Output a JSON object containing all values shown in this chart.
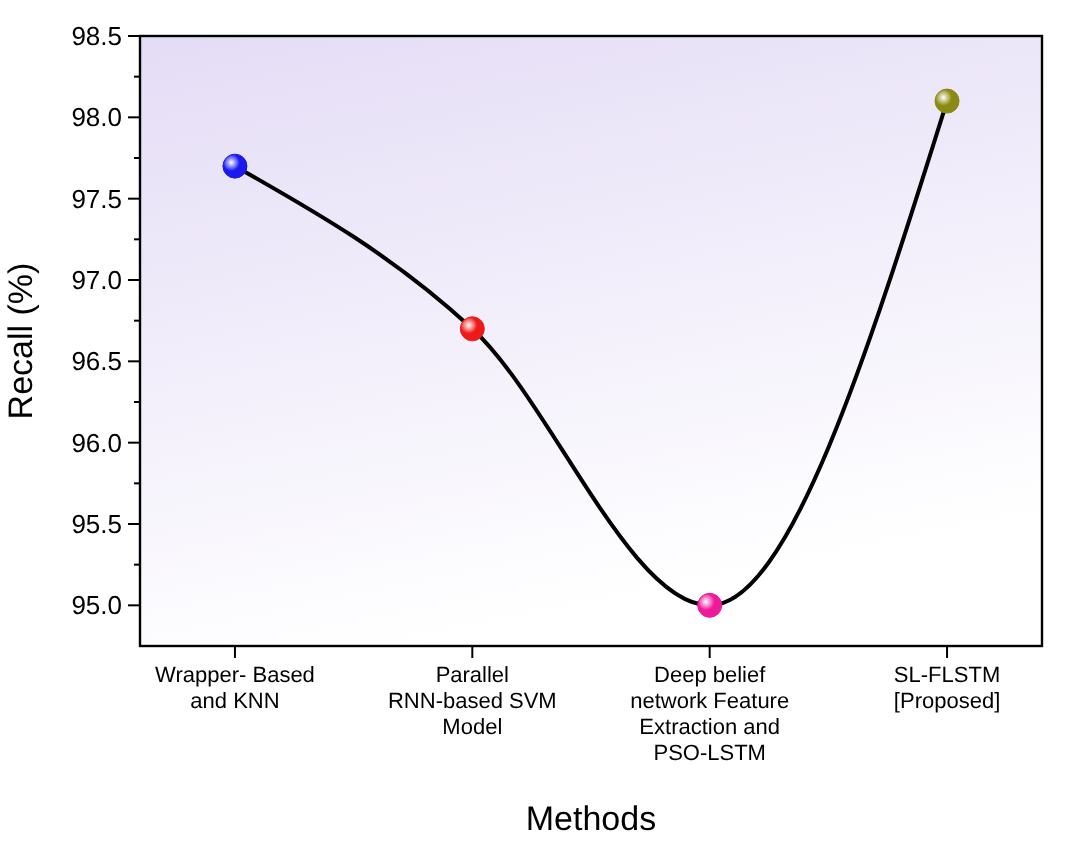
{
  "chart_data": {
    "type": "line",
    "xlabel": "Methods",
    "ylabel": "Recall (%)",
    "categories": [
      "Wrapper- Based\nand KNN",
      "Parallel\nRNN-based SVM\nModel",
      "Deep belief\nnetwork Feature\nExtraction and\nPSO-LSTM",
      "SL-FLSTM\n[Proposed]"
    ],
    "series": [
      {
        "color": "#000000",
        "colors": [
          "#1a1aee",
          "#ee1a1a",
          "#ee1a9a",
          "#8a8a10"
        ],
        "values": [
          97.7,
          96.7,
          95.0,
          98.1
        ]
      }
    ],
    "ylim": [
      94.75,
      98.5
    ],
    "yticks": [
      {
        "value": 95,
        "label": "95.0"
      },
      {
        "value": 95.5,
        "label": "95.5"
      },
      {
        "value": 96,
        "label": "96.0"
      },
      {
        "value": 96.5,
        "label": "96.5"
      },
      {
        "value": 97,
        "label": "97.0"
      },
      {
        "value": 97.5,
        "label": "97.5"
      },
      {
        "value": 98,
        "label": "98.0"
      },
      {
        "value": 98.5,
        "label": "98.5"
      }
    ],
    "grid": false,
    "marker": "circle",
    "line_style": "solid"
  }
}
